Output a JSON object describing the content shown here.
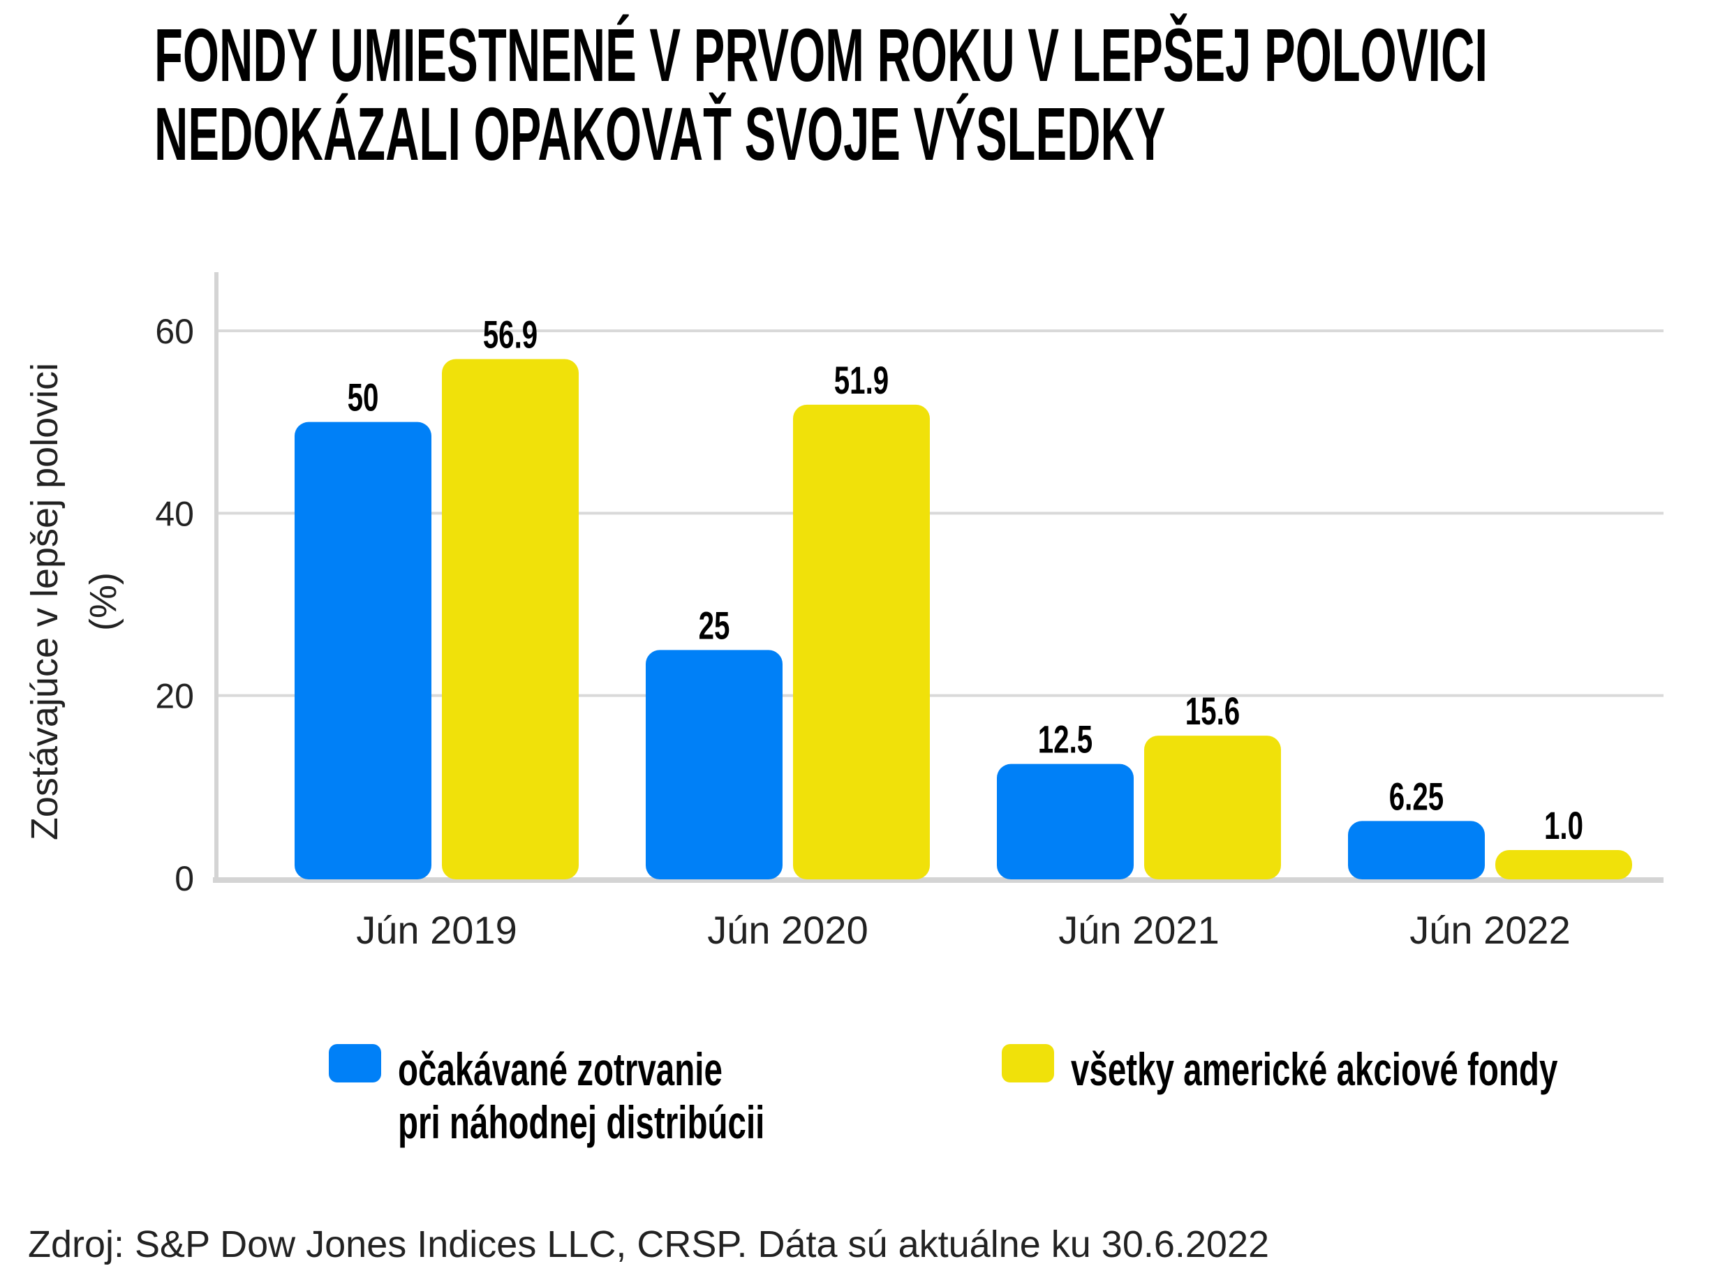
{
  "title": {
    "line1": "FONDY UMIESTNENÉ V PRVOM ROKU V LEPŠEJ POLOVICI",
    "line2": "NEDOKÁZALI OPAKOVAŤ SVOJE VÝSLEDKY"
  },
  "chart_data": {
    "type": "bar",
    "title": "FONDY UMIESTNENÉ V PRVOM ROKU V LEPŠEJ POLOVICI NEDOKÁZALI OPAKOVAŤ SVOJE VÝSLEDKY",
    "categories": [
      "Jún 2019",
      "Jún 2020",
      "Jún 2021",
      "Jún 2022"
    ],
    "series": [
      {
        "name": "očakávané zotrvanie pri náhodnej distribúcii",
        "values": [
          50,
          25,
          12.5,
          6.25
        ],
        "labels": [
          "50",
          "25",
          "12.5",
          "6.25"
        ],
        "color": "#0080F7"
      },
      {
        "name": "všetky americké akciové fondy",
        "values": [
          56.9,
          51.9,
          15.6,
          1.0
        ],
        "labels": [
          "56.9",
          "51.9",
          "15.6",
          "1.0"
        ],
        "color": "#F0E10A"
      }
    ],
    "ylabel_line1": "Zostávajúce v lepšej polovici",
    "ylabel_line2": "(%)",
    "xlabel": "",
    "ylim": [
      0,
      66
    ],
    "yticks": [
      0,
      20,
      40,
      60
    ],
    "grid": true,
    "legend_position": "bottom"
  },
  "legend": {
    "blue_line1": "očakávané zotrvanie",
    "blue_line2": "pri náhodnej distribúcii",
    "yellow": "všetky americké akciové fondy"
  },
  "source": "Zdroj: S&P Dow Jones Indices LLC, CRSP. Dáta sú aktuálne ku 30.6.2022"
}
